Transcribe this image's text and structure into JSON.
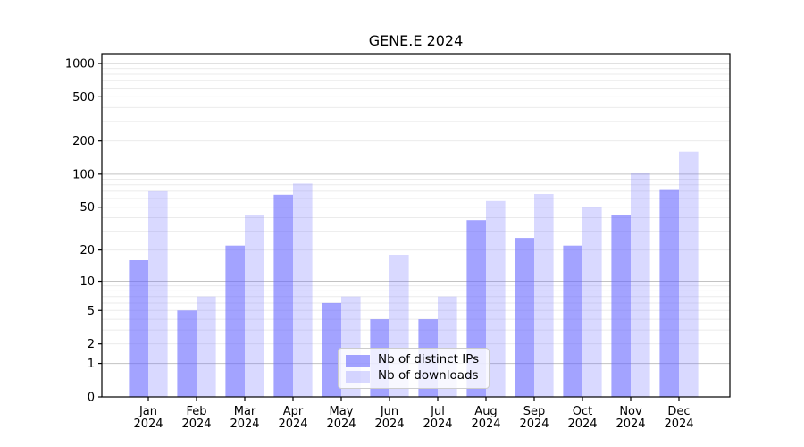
{
  "chart_data": {
    "type": "bar",
    "title": "GENE.E 2024",
    "categories": [
      "Jan 2024",
      "Feb 2024",
      "Mar 2024",
      "Apr 2024",
      "May 2024",
      "Jun 2024",
      "Jul 2024",
      "Aug 2024",
      "Sep 2024",
      "Oct 2024",
      "Nov 2024",
      "Dec 2024"
    ],
    "series": [
      {
        "name": "Nb of distinct IPs",
        "color": "rgba(102,102,255,0.6)",
        "values": [
          16,
          5,
          22,
          65,
          6,
          4,
          4,
          38,
          26,
          22,
          42,
          73
        ]
      },
      {
        "name": "Nb of downloads",
        "color": "rgba(102,102,255,0.25)",
        "values": [
          70,
          7,
          42,
          82,
          7,
          18,
          7,
          57,
          66,
          50,
          102,
          160
        ]
      }
    ],
    "yscale": "symlog",
    "yticks": [
      0,
      1,
      2,
      5,
      10,
      20,
      50,
      100,
      200,
      500,
      1000
    ],
    "ylim": [
      0,
      1200
    ],
    "xlabel": "",
    "ylabel": "",
    "grid": true,
    "legend_position": "lower center",
    "colors": {
      "bar_base": "#6666ff",
      "major_grid": "#c3c3c3",
      "minor_grid": "#ebebeb",
      "axis": "#000000"
    }
  }
}
